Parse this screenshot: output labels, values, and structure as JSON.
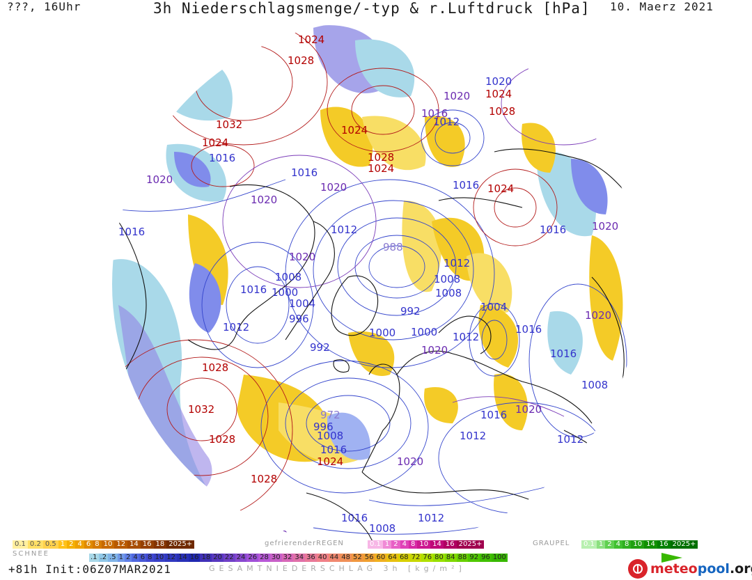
{
  "header": {
    "left": "???, 16Uhr",
    "title": "3h Niederschlagsmenge/-typ & r.Luftdruck [hPa]",
    "date": "10. Maerz 2021"
  },
  "isobar_labels": [
    {
      "text": "1024",
      "color": "#b30000"
    },
    {
      "text": "1028",
      "color": "#b30000"
    },
    {
      "text": "1020",
      "color": "#3333cc"
    },
    {
      "text": "1024",
      "color": "#b30000"
    },
    {
      "text": "1020",
      "color": "#6a2ab0"
    },
    {
      "text": "1016",
      "color": "#6a2ab0"
    },
    {
      "text": "1028",
      "color": "#b30000"
    },
    {
      "text": "1012",
      "color": "#3333cc"
    },
    {
      "text": "1032",
      "color": "#b30000"
    },
    {
      "text": "1024",
      "color": "#b30000"
    },
    {
      "text": "1024",
      "color": "#b30000"
    },
    {
      "text": "1016",
      "color": "#3333cc"
    },
    {
      "text": "1028",
      "color": "#b30000"
    },
    {
      "text": "1024",
      "color": "#b30000"
    },
    {
      "text": "1016",
      "color": "#3333cc"
    },
    {
      "text": "1020",
      "color": "#6a2ab0"
    },
    {
      "text": "1020",
      "color": "#6a2ab0"
    },
    {
      "text": "1024",
      "color": "#b30000"
    },
    {
      "text": "1016",
      "color": "#3333cc"
    },
    {
      "text": "1020",
      "color": "#6a2ab0"
    },
    {
      "text": "1012",
      "color": "#3333cc"
    },
    {
      "text": "1016",
      "color": "#3333cc"
    },
    {
      "text": "1020",
      "color": "#6a2ab0"
    },
    {
      "text": "1016",
      "color": "#3333cc"
    },
    {
      "text": "1020",
      "color": "#6a2ab0"
    },
    {
      "text": "988",
      "color": "#8a7ad0"
    },
    {
      "text": "1012",
      "color": "#3333cc"
    },
    {
      "text": "1008",
      "color": "#3333cc"
    },
    {
      "text": "1008",
      "color": "#3333cc"
    },
    {
      "text": "1008",
      "color": "#3333cc"
    },
    {
      "text": "1016",
      "color": "#3333cc"
    },
    {
      "text": "1000",
      "color": "#3333cc"
    },
    {
      "text": "1004",
      "color": "#3333cc"
    },
    {
      "text": "992",
      "color": "#3333cc"
    },
    {
      "text": "1004",
      "color": "#3333cc"
    },
    {
      "text": "1020",
      "color": "#6a2ab0"
    },
    {
      "text": "996",
      "color": "#3333cc"
    },
    {
      "text": "1012",
      "color": "#3333cc"
    },
    {
      "text": "1000",
      "color": "#3333cc"
    },
    {
      "text": "1000",
      "color": "#3333cc"
    },
    {
      "text": "1012",
      "color": "#3333cc"
    },
    {
      "text": "1016",
      "color": "#3333cc"
    },
    {
      "text": "992",
      "color": "#3333cc"
    },
    {
      "text": "1020",
      "color": "#6a2ab0"
    },
    {
      "text": "1016",
      "color": "#3333cc"
    },
    {
      "text": "1028",
      "color": "#b30000"
    },
    {
      "text": "1008",
      "color": "#3333cc"
    },
    {
      "text": "1032",
      "color": "#b30000"
    },
    {
      "text": "1020",
      "color": "#6a2ab0"
    },
    {
      "text": "1016",
      "color": "#3333cc"
    },
    {
      "text": "972",
      "color": "#8a7ad0"
    },
    {
      "text": "996",
      "color": "#3333cc"
    },
    {
      "text": "1008",
      "color": "#3333cc"
    },
    {
      "text": "1012",
      "color": "#3333cc"
    },
    {
      "text": "1012",
      "color": "#3333cc"
    },
    {
      "text": "1028",
      "color": "#b30000"
    },
    {
      "text": "1016",
      "color": "#3333cc"
    },
    {
      "text": "1024",
      "color": "#b30000"
    },
    {
      "text": "1020",
      "color": "#6a2ab0"
    },
    {
      "text": "1028",
      "color": "#b30000"
    },
    {
      "text": "1016",
      "color": "#3333cc"
    },
    {
      "text": "1012",
      "color": "#3333cc"
    },
    {
      "text": "1008",
      "color": "#3333cc"
    },
    {
      "text": "1020",
      "color": "#6a2ab0"
    }
  ],
  "legend": {
    "snow_label": "SCHNEE",
    "snow": [
      "0.1",
      "0.2",
      "0.5",
      "1",
      "2",
      "4",
      "6",
      "8",
      "10",
      "12",
      "14",
      "16",
      "18",
      "2025+"
    ],
    "snow_colors": [
      "#fff0a0",
      "#ffe066",
      "#ffd24d",
      "#ffc21a",
      "#f5b000",
      "#eea000",
      "#e08a00",
      "#d67a00",
      "#c86a00",
      "#b85a00",
      "#a84d00",
      "#964000",
      "#843400",
      "#6f2a00"
    ],
    "freezing_rain_label": "gefrierenderREGEN",
    "freezing_rain": [
      "0.1",
      "1",
      "2",
      "4",
      "8",
      "10",
      "14",
      "16",
      "2025+"
    ],
    "freezing_rain_colors": [
      "#f7b6e6",
      "#f08ad6",
      "#e860c6",
      "#e040b8",
      "#d828a6",
      "#cc1890",
      "#c00878",
      "#b00062",
      "#a0004e"
    ],
    "graupel_label": "GRAUPEL",
    "graupel": [
      "0.1",
      "1",
      "2",
      "4",
      "8",
      "10",
      "14",
      "16",
      "2025+"
    ],
    "graupel_colors": [
      "#b8f0b0",
      "#8ce080",
      "#60d050",
      "#40c030",
      "#30b020",
      "#20a010",
      "#109000",
      "#008000",
      "#007000"
    ],
    "rain": [
      ".1",
      ".2",
      ".5",
      "1",
      "2",
      "4",
      "6",
      "8",
      "10",
      "12",
      "14",
      "16",
      "18",
      "20",
      "22",
      "24",
      "26",
      "28",
      "30",
      "32",
      "34",
      "36",
      "40",
      "44",
      "48",
      "52",
      "56",
      "60",
      "64",
      "68",
      "72",
      "76",
      "80",
      "84",
      "88",
      "92",
      "96",
      "100"
    ],
    "rain_colors": [
      "#a8d8e8",
      "#90c8e8",
      "#80b4e8",
      "#7098e8",
      "#6080e8",
      "#5068e0",
      "#4858d8",
      "#4048d0",
      "#3840c8",
      "#3038c0",
      "#2830b8",
      "#2028b0",
      "#4030b8",
      "#5838c0",
      "#7040c8",
      "#8848d0",
      "#a050d8",
      "#b858d8",
      "#c860c8",
      "#d868b8",
      "#e070a8",
      "#e87898",
      "#f08088",
      "#f08870",
      "#f09058",
      "#f09840",
      "#f0a030",
      "#f0b020",
      "#e8c010",
      "#d8d000",
      "#c8d800",
      "#b0e000",
      "#98e000",
      "#80d800",
      "#68d000",
      "#50c800",
      "#40c000",
      "#38b800"
    ],
    "total_label": "GESAMTNIEDERSCHLAG 3h [kg/m²]"
  },
  "footer": {
    "run": "+81h Init:06Z07MAR2021",
    "brand_main": "meteo",
    "brand_accent": "pool",
    "brand_suffix": ".org"
  }
}
